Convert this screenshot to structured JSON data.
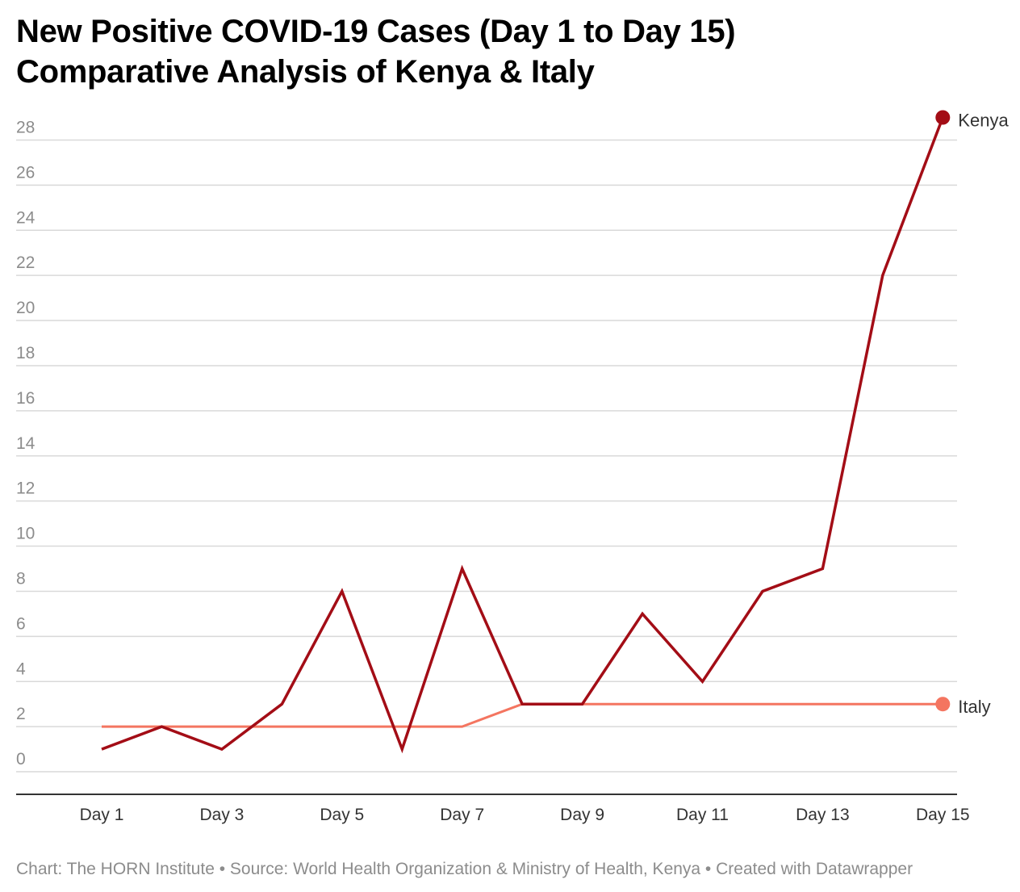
{
  "title_line1": "New Positive COVID-19 Cases (Day 1 to Day 15)",
  "title_line2": "Comparative Analysis of Kenya & Italy",
  "footer": "Chart: The HORN Institute • Source: World Health Organization & Ministry of Health, Kenya • Created with Datawrapper",
  "colors": {
    "kenya": "#a30d16",
    "italy": "#f47560",
    "grid": "#d9d9d9",
    "axis": "#333333"
  },
  "chart_data": {
    "type": "line",
    "x": [
      "Day 1",
      "Day 2",
      "Day 3",
      "Day 4",
      "Day 5",
      "Day 6",
      "Day 7",
      "Day 8",
      "Day 9",
      "Day 10",
      "Day 11",
      "Day 12",
      "Day 13",
      "Day 14",
      "Day 15"
    ],
    "x_tick_labels": [
      "Day 1",
      "Day 3",
      "Day 5",
      "Day 7",
      "Day 9",
      "Day 11",
      "Day 13",
      "Day 15"
    ],
    "y_ticks": [
      0,
      2,
      4,
      6,
      8,
      10,
      12,
      14,
      16,
      18,
      20,
      22,
      24,
      26,
      28
    ],
    "ylim": [
      0,
      28
    ],
    "grid": true,
    "legend": "direct labels at line ends",
    "series": [
      {
        "name": "Kenya",
        "color": "#a30d16",
        "values": [
          1,
          2,
          1,
          3,
          8,
          1,
          9,
          3,
          3,
          7,
          4,
          8,
          9,
          22,
          29
        ]
      },
      {
        "name": "Italy",
        "color": "#f47560",
        "values": [
          2,
          2,
          2,
          2,
          2,
          2,
          2,
          3,
          3,
          3,
          3,
          3,
          3,
          3,
          3
        ]
      }
    ]
  }
}
